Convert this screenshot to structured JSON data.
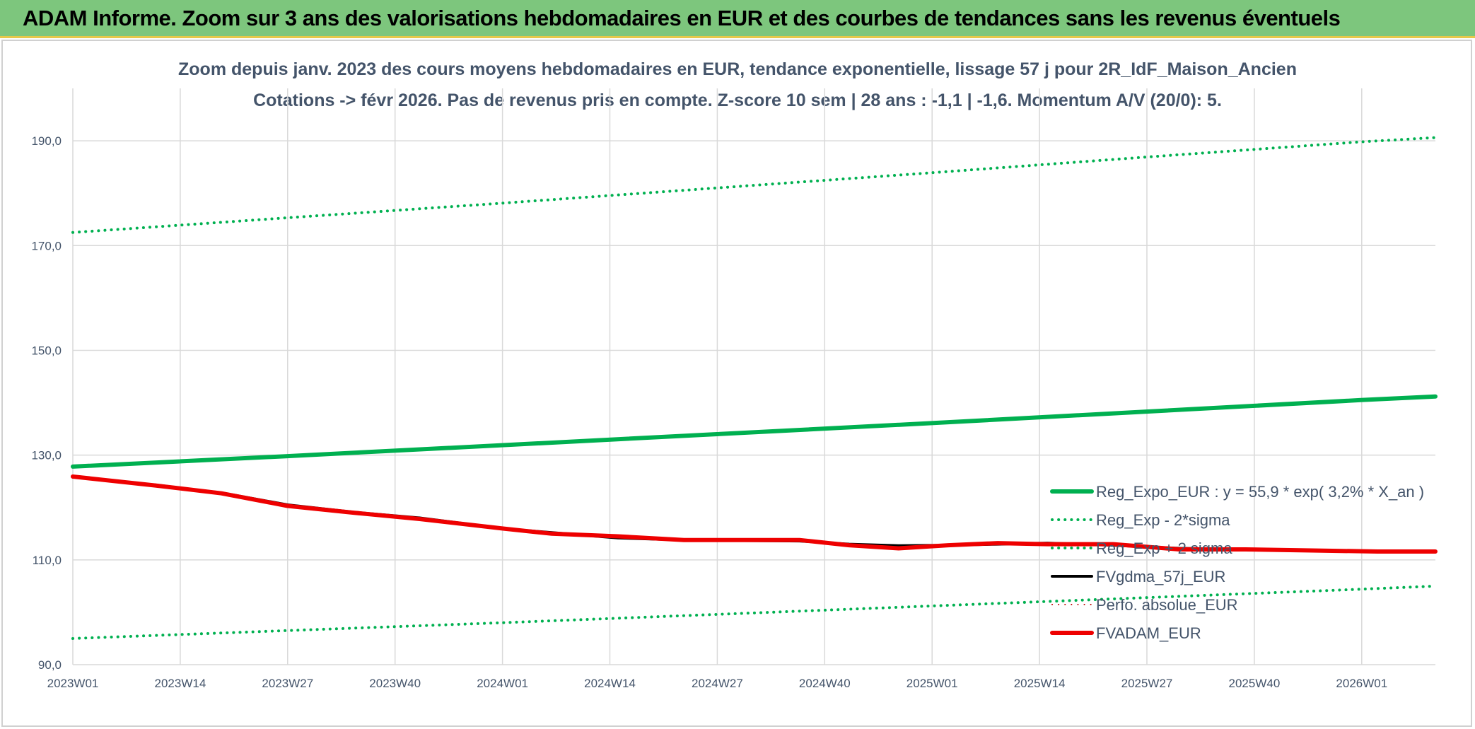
{
  "banner": {
    "title": "ADAM Informe. Zoom sur 3 ans des valorisations hebdomadaires en EUR et des courbes de tendances sans les revenus éventuels",
    "color": "#7dc67d"
  },
  "chart_data": {
    "type": "line",
    "title": "Zoom depuis janv. 2023 des cours moyens hebdomadaires en EUR, tendance exponentielle, lissage 57 j pour 2R_IdF_Maison_Ancien",
    "subtitle": "Cotations -> févr 2026. Pas de revenus pris en compte. Z-score 10 sem | 28 ans : -1,1 | -1,6. Momentum A/V (20/0): 5.",
    "xlabel": "",
    "ylabel": "",
    "ylim": [
      90,
      200
    ],
    "x_ticks": [
      "2023W01",
      "2023W14",
      "2023W27",
      "2023W40",
      "2024W01",
      "2024W14",
      "2024W27",
      "2024W40",
      "2025W01",
      "2025W14",
      "2025W27",
      "2025W40",
      "2026W01"
    ],
    "y_ticks": [
      "90,0",
      "110,0",
      "130,0",
      "150,0",
      "170,0",
      "190,0"
    ],
    "y_tick_values": [
      90,
      110,
      130,
      150,
      170,
      190
    ],
    "x_range_weeks": [
      0,
      165
    ],
    "grid": true,
    "legend_position": "bottom-right",
    "series": [
      {
        "name": "Reg_Expo_EUR : y = 55,9 * exp( 3,2% *  X_an )",
        "color": "#00b050",
        "style": "solid",
        "width": 6,
        "x": [
          0,
          26,
          52,
          78,
          104,
          130,
          156,
          165
        ],
        "y": [
          127.8,
          129.8,
          131.9,
          134.0,
          136.1,
          138.3,
          140.5,
          141.2
        ]
      },
      {
        "name": "Reg_Exp - 2*sigma",
        "color": "#00b050",
        "style": "dotted",
        "width": 4,
        "x": [
          0,
          26,
          52,
          78,
          104,
          130,
          156,
          165
        ],
        "y": [
          95.0,
          96.5,
          98.0,
          99.6,
          101.2,
          102.8,
          104.4,
          105.0
        ]
      },
      {
        "name": "Reg_Exp + 2 sigma",
        "color": "#00b050",
        "style": "dotted",
        "width": 4,
        "x": [
          0,
          26,
          52,
          78,
          104,
          130,
          156,
          165
        ],
        "y": [
          172.5,
          175.3,
          178.1,
          181.0,
          183.9,
          186.9,
          189.8,
          190.6
        ]
      },
      {
        "name": "FVgdma_57j_EUR",
        "color": "#000000",
        "style": "solid",
        "width": 4,
        "x": [
          0,
          10,
          18,
          26,
          34,
          42,
          52,
          58,
          66,
          74,
          80,
          88,
          94,
          100,
          106,
          112,
          118,
          126,
          134,
          142,
          150,
          158,
          165
        ],
        "y": [
          125.8,
          124.3,
          122.8,
          120.5,
          119.1,
          118.0,
          116.0,
          115.2,
          114.2,
          113.8,
          113.7,
          113.6,
          113.0,
          112.7,
          112.8,
          113.0,
          113.2,
          112.8,
          112.2,
          112.0,
          111.8,
          111.6,
          111.5
        ]
      },
      {
        "name": "Perfo. absolue_EUR",
        "color": "#c00000",
        "style": "dotted",
        "width": 2,
        "x": [],
        "y": []
      },
      {
        "name": "FVADAM_EUR",
        "color": "#ee0000",
        "style": "solid",
        "width": 6,
        "x": [
          0,
          10,
          18,
          26,
          34,
          42,
          52,
          58,
          66,
          74,
          80,
          88,
          94,
          100,
          106,
          112,
          118,
          126,
          134,
          142,
          150,
          158,
          165
        ],
        "y": [
          125.9,
          124.2,
          122.7,
          120.3,
          119.0,
          117.8,
          116.0,
          115.0,
          114.5,
          113.8,
          113.8,
          113.8,
          112.8,
          112.2,
          112.8,
          113.2,
          113.0,
          113.0,
          112.0,
          112.0,
          111.8,
          111.6,
          111.6
        ]
      }
    ]
  }
}
